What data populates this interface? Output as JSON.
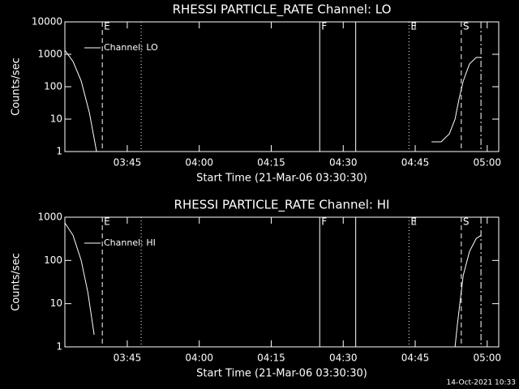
{
  "chart_data": [
    {
      "type": "line",
      "title": "RHESSI PARTICLE_RATE Channel: LO",
      "xlabel": "Start Time (21-Mar-06 03:30:30)",
      "ylabel": "Counts/sec",
      "x": [
        212.0,
        213.7,
        215.4,
        217.1,
        218.6,
        253.0,
        288.4,
        290.4,
        292.1,
        293.3,
        294.1,
        295.0,
        296.3,
        297.7,
        298.7
      ],
      "series": [
        {
          "name": "Channel: LO",
          "color": "#ffffff",
          "values": [
            1330,
            600,
            150,
            16,
            1,
            null,
            2,
            2,
            3.5,
            10,
            40,
            150,
            500,
            800,
            800
          ]
        }
      ],
      "xlim": [
        212.0,
        302.4
      ],
      "xticks": [
        {
          "value": 225,
          "label": "03:45"
        },
        {
          "value": 240,
          "label": "04:00"
        },
        {
          "value": 255,
          "label": "04:15"
        },
        {
          "value": 270,
          "label": "04:30"
        },
        {
          "value": 285,
          "label": "04:45"
        },
        {
          "value": 300,
          "label": "05:00"
        }
      ],
      "ylim": [
        1,
        10000
      ],
      "yticks": [
        1,
        10,
        100,
        1000,
        10000
      ],
      "log_y": true,
      "legend": "upper left",
      "markers": [
        {
          "x": 219.8,
          "style": "dashed",
          "label": "E"
        },
        {
          "x": 227.9,
          "style": "dotted"
        },
        {
          "x": 265.1,
          "style": "solid",
          "label": "F"
        },
        {
          "x": 272.6,
          "style": "solid"
        },
        {
          "x": 283.7,
          "style": "dotted",
          "label": "E"
        },
        {
          "x": 294.6,
          "style": "dashed",
          "label": "S"
        },
        {
          "x": 298.7,
          "style": "dashdot"
        }
      ]
    },
    {
      "type": "line",
      "title": "RHESSI PARTICLE_RATE Channel: HI",
      "xlabel": "Start Time (21-Mar-06 03:30:30)",
      "ylabel": "Counts/sec",
      "x": [
        212.0,
        213.7,
        215.4,
        216.8,
        218.1,
        253.0,
        293.3,
        293.8,
        295.0,
        296.3,
        297.7,
        298.7
      ],
      "series": [
        {
          "name": "Channel: HI",
          "color": "#ffffff",
          "values": [
            740,
            380,
            100,
            18,
            1.9,
            null,
            1,
            3.4,
            45,
            160,
            320,
            380
          ]
        }
      ],
      "xlim": [
        212.0,
        302.4
      ],
      "xticks": [
        {
          "value": 225,
          "label": "03:45"
        },
        {
          "value": 240,
          "label": "04:00"
        },
        {
          "value": 255,
          "label": "04:15"
        },
        {
          "value": 270,
          "label": "04:30"
        },
        {
          "value": 285,
          "label": "04:45"
        },
        {
          "value": 300,
          "label": "05:00"
        }
      ],
      "ylim": [
        1,
        1000
      ],
      "yticks": [
        1,
        10,
        100,
        1000
      ],
      "log_y": true,
      "legend": "upper left",
      "markers": [
        {
          "x": 219.8,
          "style": "dashed",
          "label": "E"
        },
        {
          "x": 227.9,
          "style": "dotted"
        },
        {
          "x": 265.1,
          "style": "solid",
          "label": "F"
        },
        {
          "x": 272.6,
          "style": "solid"
        },
        {
          "x": 283.7,
          "style": "dotted",
          "label": "E"
        },
        {
          "x": 294.6,
          "style": "dashed",
          "label": "S"
        },
        {
          "x": 298.7,
          "style": "dashdot"
        }
      ]
    }
  ],
  "footer": "14-Oct-2021 10:33"
}
